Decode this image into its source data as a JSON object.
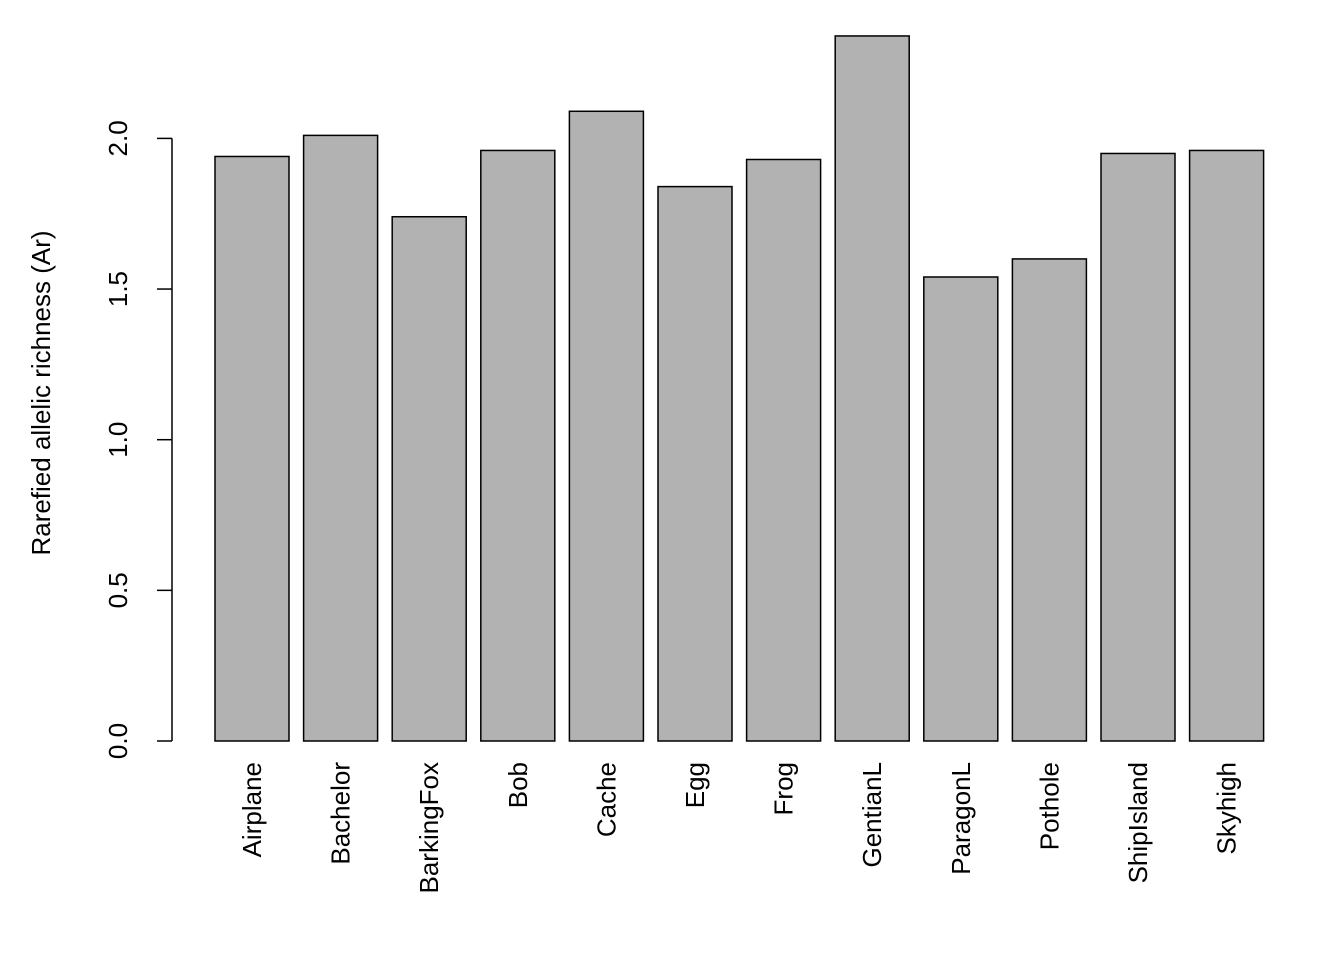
{
  "chart_data": {
    "type": "bar",
    "title": "",
    "xlabel": "",
    "ylabel": "Rarefied allelic richness (Ar)",
    "ylim": [
      0,
      2.35
    ],
    "yticks": [
      "0.0",
      "0.5",
      "1.0",
      "1.5",
      "2.0"
    ],
    "grid": false,
    "bar_color": "#b2b2b2",
    "categories": [
      "Airplane",
      "Bachelor",
      "BarkingFox",
      "Bob",
      "Cache",
      "Egg",
      "Frog",
      "GentianL",
      "ParagonL",
      "Pothole",
      "ShipIsland",
      "Skyhigh"
    ],
    "values": [
      1.94,
      2.01,
      1.74,
      1.96,
      2.09,
      1.84,
      1.93,
      2.34,
      1.54,
      1.6,
      1.95,
      1.96
    ]
  }
}
